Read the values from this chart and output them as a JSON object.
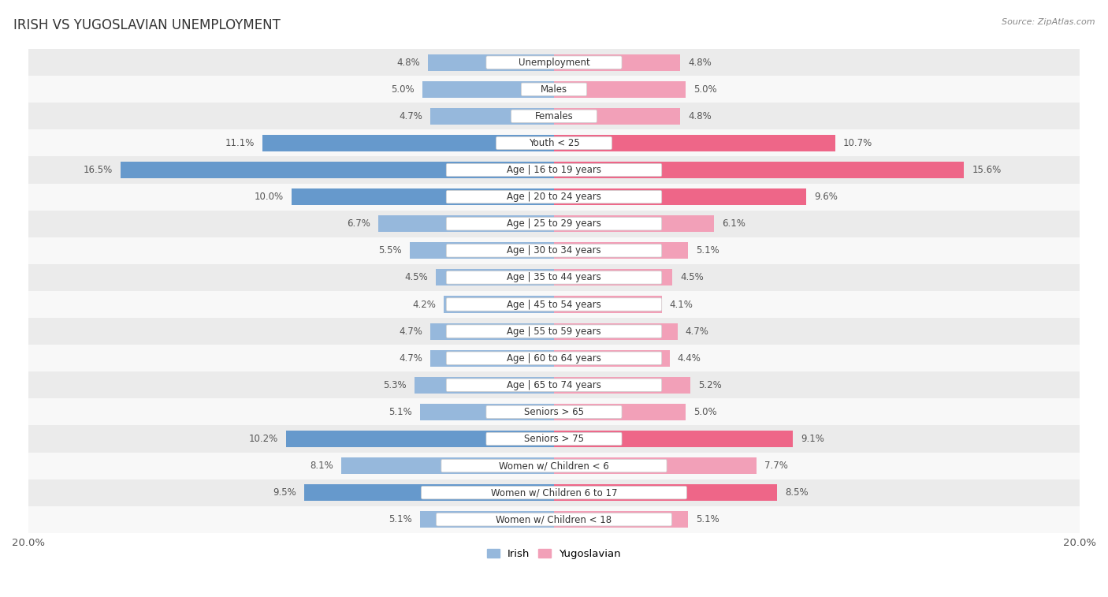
{
  "title": "IRISH VS YUGOSLAVIAN UNEMPLOYMENT",
  "source": "Source: ZipAtlas.com",
  "categories": [
    "Unemployment",
    "Males",
    "Females",
    "Youth < 25",
    "Age | 16 to 19 years",
    "Age | 20 to 24 years",
    "Age | 25 to 29 years",
    "Age | 30 to 34 years",
    "Age | 35 to 44 years",
    "Age | 45 to 54 years",
    "Age | 55 to 59 years",
    "Age | 60 to 64 years",
    "Age | 65 to 74 years",
    "Seniors > 65",
    "Seniors > 75",
    "Women w/ Children < 6",
    "Women w/ Children 6 to 17",
    "Women w/ Children < 18"
  ],
  "irish": [
    4.8,
    5.0,
    4.7,
    11.1,
    16.5,
    10.0,
    6.7,
    5.5,
    4.5,
    4.2,
    4.7,
    4.7,
    5.3,
    5.1,
    10.2,
    8.1,
    9.5,
    5.1
  ],
  "yugoslavian": [
    4.8,
    5.0,
    4.8,
    10.7,
    15.6,
    9.6,
    6.1,
    5.1,
    4.5,
    4.1,
    4.7,
    4.4,
    5.2,
    5.0,
    9.1,
    7.7,
    8.5,
    5.1
  ],
  "irish_color_normal": "#96b8dc",
  "irish_color_highlight": "#6699cc",
  "yugoslavian_color_normal": "#f2a0b8",
  "yugoslavian_color_highlight": "#ee6688",
  "bg_odd": "#ebebeb",
  "bg_even": "#f8f8f8",
  "axis_limit": 20.0,
  "bar_height": 0.62,
  "value_fontsize": 8.5,
  "label_fontsize": 8.5,
  "title_fontsize": 12,
  "source_fontsize": 8,
  "legend_fontsize": 9.5,
  "legend_irish": "Irish",
  "legend_yugoslavian": "Yugoslavian",
  "highlight_threshold": 9.5
}
